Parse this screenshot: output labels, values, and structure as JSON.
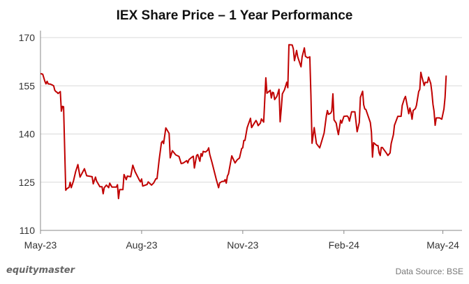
{
  "chart_data": {
    "type": "line",
    "title": "IEX Share Price – 1 Year Performance",
    "xlabel": "",
    "ylabel": "",
    "ylim": [
      110,
      170
    ],
    "yticks": [
      110,
      125,
      140,
      155,
      170
    ],
    "xlim": [
      "2023-05-01",
      "2024-05-07"
    ],
    "xticks": [
      {
        "date": "2023-05-01",
        "label": "May-23"
      },
      {
        "date": "2023-08-01",
        "label": "Aug-23"
      },
      {
        "date": "2023-11-01",
        "label": "Nov-23"
      },
      {
        "date": "2024-02-01",
        "label": "Feb-24"
      },
      {
        "date": "2024-05-01",
        "label": "May-24"
      }
    ],
    "grid": "horizontal",
    "line_color": "#c00000",
    "series": [
      {
        "points": [
          [
            "2023-05-01",
            158.8
          ],
          [
            "2023-05-03",
            158.6
          ],
          [
            "2023-05-05",
            156.4
          ],
          [
            "2023-05-06",
            155.6
          ],
          [
            "2023-05-07",
            156.4
          ],
          [
            "2023-05-08",
            155.6
          ],
          [
            "2023-05-10",
            155.5
          ],
          [
            "2023-05-12",
            155.2
          ],
          [
            "2023-05-13",
            155.0
          ],
          [
            "2023-05-14",
            153.6
          ],
          [
            "2023-05-15",
            153.2
          ],
          [
            "2023-05-16",
            153.0
          ],
          [
            "2023-05-17",
            152.6
          ],
          [
            "2023-05-19",
            153.2
          ],
          [
            "2023-05-20",
            147.1
          ],
          [
            "2023-05-21",
            148.6
          ],
          [
            "2023-05-22",
            148.5
          ],
          [
            "2023-05-24",
            122.5
          ],
          [
            "2023-05-25",
            123.0
          ],
          [
            "2023-05-27",
            123.4
          ],
          [
            "2023-05-28",
            125.0
          ],
          [
            "2023-05-29",
            123.3
          ],
          [
            "2023-05-31",
            125.4
          ],
          [
            "2023-06-02",
            128.3
          ],
          [
            "2023-06-04",
            130.5
          ],
          [
            "2023-06-06",
            126.6
          ],
          [
            "2023-06-10",
            129.2
          ],
          [
            "2023-06-12",
            127.0
          ],
          [
            "2023-06-14",
            126.9
          ],
          [
            "2023-06-17",
            126.7
          ],
          [
            "2023-06-18",
            124.5
          ],
          [
            "2023-06-20",
            126.6
          ],
          [
            "2023-06-21",
            125.4
          ],
          [
            "2023-06-24",
            123.6
          ],
          [
            "2023-06-26",
            123.6
          ],
          [
            "2023-06-27",
            121.4
          ],
          [
            "2023-06-28",
            123.3
          ],
          [
            "2023-06-30",
            124.1
          ],
          [
            "2023-07-02",
            123.3
          ],
          [
            "2023-07-03",
            124.7
          ],
          [
            "2023-07-05",
            123.5
          ],
          [
            "2023-07-09",
            123.5
          ],
          [
            "2023-07-10",
            124.2
          ],
          [
            "2023-07-11",
            119.9
          ],
          [
            "2023-07-12",
            122.7
          ],
          [
            "2023-07-15",
            122.7
          ],
          [
            "2023-07-16",
            127.4
          ],
          [
            "2023-07-18",
            125.8
          ],
          [
            "2023-07-19",
            126.9
          ],
          [
            "2023-07-22",
            126.7
          ],
          [
            "2023-07-24",
            130.3
          ],
          [
            "2023-07-26",
            128.3
          ],
          [
            "2023-07-30",
            125.6
          ],
          [
            "2023-07-31",
            125.1
          ],
          [
            "2023-08-01",
            126.0
          ],
          [
            "2023-08-02",
            123.8
          ],
          [
            "2023-08-06",
            124.3
          ],
          [
            "2023-08-07",
            125.1
          ],
          [
            "2023-08-10",
            124.1
          ],
          [
            "2023-08-12",
            124.8
          ],
          [
            "2023-08-14",
            126.1
          ],
          [
            "2023-08-15",
            126.1
          ],
          [
            "2023-08-17",
            132.1
          ],
          [
            "2023-08-19",
            137.3
          ],
          [
            "2023-08-20",
            137.8
          ],
          [
            "2023-08-21",
            137.0
          ],
          [
            "2023-08-23",
            141.9
          ],
          [
            "2023-08-26",
            140.2
          ],
          [
            "2023-08-27",
            132.6
          ],
          [
            "2023-08-29",
            134.8
          ],
          [
            "2023-09-01",
            133.5
          ],
          [
            "2023-09-04",
            133.0
          ],
          [
            "2023-09-06",
            130.8
          ],
          [
            "2023-09-08",
            131.0
          ],
          [
            "2023-09-11",
            131.7
          ],
          [
            "2023-09-12",
            131.0
          ],
          [
            "2023-09-13",
            132.0
          ],
          [
            "2023-09-15",
            132.6
          ],
          [
            "2023-09-17",
            133.1
          ],
          [
            "2023-09-18",
            129.4
          ],
          [
            "2023-09-20",
            133.3
          ],
          [
            "2023-09-21",
            133.6
          ],
          [
            "2023-09-23",
            131.5
          ],
          [
            "2023-09-24",
            133.9
          ],
          [
            "2023-09-25",
            133.1
          ],
          [
            "2023-09-26",
            134.6
          ],
          [
            "2023-09-28",
            134.4
          ],
          [
            "2023-09-30",
            134.9
          ],
          [
            "2023-10-01",
            135.7
          ],
          [
            "2023-10-02",
            133.6
          ],
          [
            "2023-10-04",
            131.2
          ],
          [
            "2023-10-08",
            125.8
          ],
          [
            "2023-10-10",
            123.3
          ],
          [
            "2023-10-11",
            124.8
          ],
          [
            "2023-10-13",
            125.2
          ],
          [
            "2023-10-15",
            125.3
          ],
          [
            "2023-10-16",
            125.8
          ],
          [
            "2023-10-17",
            124.7
          ],
          [
            "2023-10-18",
            126.9
          ],
          [
            "2023-10-19",
            127.6
          ],
          [
            "2023-10-22",
            133.2
          ],
          [
            "2023-10-25",
            131.0
          ],
          [
            "2023-10-27",
            132.0
          ],
          [
            "2023-10-29",
            132.5
          ],
          [
            "2023-10-31",
            135.5
          ],
          [
            "2023-11-01",
            135.7
          ],
          [
            "2023-11-02",
            138.0
          ],
          [
            "2023-11-03",
            138.0
          ],
          [
            "2023-11-05",
            142.0
          ],
          [
            "2023-11-08",
            144.9
          ],
          [
            "2023-11-09",
            142.0
          ],
          [
            "2023-11-11",
            143.1
          ],
          [
            "2023-11-13",
            144.2
          ],
          [
            "2023-11-14",
            143.6
          ],
          [
            "2023-11-15",
            142.6
          ],
          [
            "2023-11-17",
            143.4
          ],
          [
            "2023-11-18",
            144.7
          ],
          [
            "2023-11-20",
            143.7
          ],
          [
            "2023-11-22",
            157.5
          ],
          [
            "2023-11-23",
            152.7
          ],
          [
            "2023-11-24",
            153.0
          ],
          [
            "2023-11-26",
            153.6
          ],
          [
            "2023-11-27",
            151.2
          ],
          [
            "2023-11-28",
            153.0
          ],
          [
            "2023-11-29",
            152.8
          ],
          [
            "2023-11-30",
            150.7
          ],
          [
            "2023-12-02",
            151.7
          ],
          [
            "2023-12-04",
            153.9
          ],
          [
            "2023-12-05",
            143.8
          ],
          [
            "2023-12-06",
            147.8
          ],
          [
            "2023-12-07",
            152.5
          ],
          [
            "2023-12-09",
            153.8
          ],
          [
            "2023-12-11",
            156.1
          ],
          [
            "2023-12-12",
            154.4
          ],
          [
            "2023-12-13",
            167.8
          ],
          [
            "2023-12-16",
            167.7
          ],
          [
            "2023-12-17",
            166.5
          ],
          [
            "2023-12-18",
            162.8
          ],
          [
            "2023-12-20",
            166.0
          ],
          [
            "2023-12-21",
            164.0
          ],
          [
            "2023-12-24",
            160.9
          ],
          [
            "2023-12-25",
            164.0
          ],
          [
            "2023-12-27",
            166.8
          ],
          [
            "2023-12-28",
            164.2
          ],
          [
            "2023-12-30",
            163.7
          ],
          [
            "2024-01-01",
            164.0
          ],
          [
            "2024-01-02",
            152.1
          ],
          [
            "2024-01-03",
            137.1
          ],
          [
            "2024-01-05",
            142.0
          ],
          [
            "2024-01-07",
            137.0
          ],
          [
            "2024-01-10",
            135.7
          ],
          [
            "2024-01-12",
            138.0
          ],
          [
            "2024-01-14",
            140.3
          ],
          [
            "2024-01-16",
            145.6
          ],
          [
            "2024-01-17",
            147.3
          ],
          [
            "2024-01-18",
            146.1
          ],
          [
            "2024-01-20",
            146.5
          ],
          [
            "2024-01-21",
            147.2
          ],
          [
            "2024-01-22",
            152.5
          ],
          [
            "2024-01-23",
            144.4
          ],
          [
            "2024-01-25",
            143.4
          ],
          [
            "2024-01-26",
            141.4
          ],
          [
            "2024-01-27",
            139.8
          ],
          [
            "2024-01-29",
            144.3
          ],
          [
            "2024-01-30",
            143.4
          ],
          [
            "2024-02-01",
            145.5
          ],
          [
            "2024-02-04",
            145.6
          ],
          [
            "2024-02-05",
            145.2
          ],
          [
            "2024-02-06",
            144.0
          ],
          [
            "2024-02-08",
            146.9
          ],
          [
            "2024-02-11",
            146.9
          ],
          [
            "2024-02-13",
            140.7
          ],
          [
            "2024-02-15",
            143.6
          ],
          [
            "2024-02-16",
            151.4
          ],
          [
            "2024-02-18",
            153.3
          ],
          [
            "2024-02-19",
            149.1
          ],
          [
            "2024-02-20",
            147.8
          ],
          [
            "2024-02-21",
            147.6
          ],
          [
            "2024-02-23",
            145.6
          ],
          [
            "2024-02-25",
            143.6
          ],
          [
            "2024-02-26",
            140.6
          ],
          [
            "2024-02-27",
            132.8
          ],
          [
            "2024-02-28",
            137.3
          ],
          [
            "2024-03-02",
            136.4
          ],
          [
            "2024-03-03",
            136.4
          ],
          [
            "2024-03-04",
            134.1
          ],
          [
            "2024-03-05",
            133.3
          ],
          [
            "2024-03-06",
            135.8
          ],
          [
            "2024-03-07",
            135.8
          ],
          [
            "2024-03-11",
            133.9
          ],
          [
            "2024-03-12",
            133.3
          ],
          [
            "2024-03-14",
            134.1
          ],
          [
            "2024-03-15",
            137.0
          ],
          [
            "2024-03-17",
            139.8
          ],
          [
            "2024-03-18",
            142.7
          ],
          [
            "2024-03-21",
            145.5
          ],
          [
            "2024-03-24",
            145.5
          ],
          [
            "2024-03-25",
            148.9
          ],
          [
            "2024-03-27",
            151.0
          ],
          [
            "2024-03-28",
            151.7
          ],
          [
            "2024-03-30",
            148.1
          ],
          [
            "2024-03-31",
            146.3
          ],
          [
            "2024-04-01",
            148.1
          ],
          [
            "2024-04-02",
            146.7
          ],
          [
            "2024-04-03",
            144.6
          ],
          [
            "2024-04-04",
            147.3
          ],
          [
            "2024-04-06",
            147.9
          ],
          [
            "2024-04-07",
            148.9
          ],
          [
            "2024-04-09",
            153.2
          ],
          [
            "2024-04-10",
            153.9
          ],
          [
            "2024-04-11",
            159.2
          ],
          [
            "2024-04-12",
            157.7
          ],
          [
            "2024-04-14",
            155.1
          ],
          [
            "2024-04-15",
            156.1
          ],
          [
            "2024-04-17",
            156.0
          ],
          [
            "2024-04-18",
            157.7
          ],
          [
            "2024-04-20",
            155.7
          ],
          [
            "2024-04-21",
            153.0
          ],
          [
            "2024-04-22",
            149.2
          ],
          [
            "2024-04-23",
            147.1
          ],
          [
            "2024-04-24",
            142.7
          ],
          [
            "2024-04-25",
            145.0
          ],
          [
            "2024-04-28",
            145.0
          ],
          [
            "2024-04-30",
            144.6
          ],
          [
            "2024-05-02",
            147.8
          ],
          [
            "2024-05-03",
            151.4
          ],
          [
            "2024-05-04",
            158.2
          ]
        ]
      }
    ]
  },
  "footer": {
    "logo": "equitymaster",
    "source": "Data Source: BSE"
  }
}
